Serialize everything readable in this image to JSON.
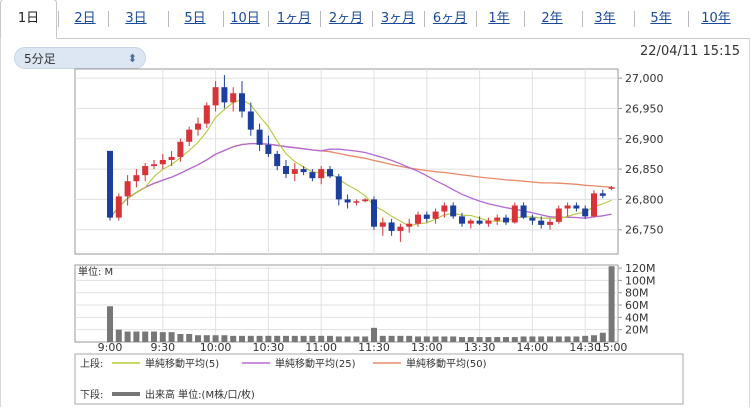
{
  "tabs": [
    "1日",
    "2日",
    "3日",
    "5日",
    "10日",
    "1ヶ月",
    "2ヶ月",
    "3ヶ月",
    "6ヶ月",
    "1年",
    "2年",
    "3年",
    "5年",
    "10年"
  ],
  "active_tab": "1日",
  "interval_select": {
    "value": "5分足"
  },
  "datetime": "22/04/11 15:15",
  "colors": {
    "up": "#d9333a",
    "down": "#1c3f9e",
    "ma5": "#b5c93c",
    "ma25": "#b36ad6",
    "ma50": "#e88a6a",
    "volume": "#777777"
  },
  "chart_data": {
    "type": "candlestick",
    "x_tick_labels": [
      "9:00",
      "9:30",
      "10:00",
      "10:30",
      "11:00",
      "11:30",
      "13:00",
      "13:30",
      "14:00",
      "14:30",
      "15:00"
    ],
    "price_axis": {
      "ticks": [
        "27,000",
        "26,950",
        "26,900",
        "26,850",
        "26,800",
        "26,750"
      ],
      "ylim": [
        26710,
        27015
      ]
    },
    "volume_axis": {
      "unit_label": "単位: M",
      "ticks": [
        "120M",
        "100M",
        "80M",
        "60M",
        "40M",
        "20M"
      ],
      "ylim": [
        0,
        125
      ]
    },
    "candles": [
      [
        26880,
        26880,
        26765,
        26770
      ],
      [
        26770,
        26810,
        26765,
        26805
      ],
      [
        26805,
        26840,
        26790,
        26830
      ],
      [
        26830,
        26850,
        26820,
        26840
      ],
      [
        26840,
        26860,
        26830,
        26855
      ],
      [
        26855,
        26865,
        26850,
        26858
      ],
      [
        26858,
        26875,
        26850,
        26865
      ],
      [
        26865,
        26880,
        26855,
        26870
      ],
      [
        26870,
        26900,
        26862,
        26895
      ],
      [
        26895,
        26920,
        26888,
        26915
      ],
      [
        26915,
        26935,
        26905,
        26925
      ],
      [
        26925,
        26960,
        26918,
        26955
      ],
      [
        26955,
        26995,
        26945,
        26985
      ],
      [
        26985,
        27005,
        26950,
        26960
      ],
      [
        26960,
        26985,
        26945,
        26975
      ],
      [
        26975,
        26995,
        26935,
        26945
      ],
      [
        26945,
        26960,
        26905,
        26915
      ],
      [
        26915,
        26925,
        26880,
        26890
      ],
      [
        26890,
        26905,
        26870,
        26875
      ],
      [
        26875,
        26880,
        26848,
        26855
      ],
      [
        26855,
        26865,
        26835,
        26842
      ],
      [
        26842,
        26860,
        26830,
        26850
      ],
      [
        26850,
        26855,
        26840,
        26845
      ],
      [
        26845,
        26850,
        26830,
        26835
      ],
      [
        26835,
        26855,
        26825,
        26850
      ],
      [
        26850,
        26855,
        26835,
        26838
      ],
      [
        26838,
        26842,
        26790,
        26800
      ],
      [
        26800,
        26808,
        26785,
        26795
      ],
      [
        26795,
        26800,
        26790,
        26797
      ],
      [
        26797,
        26802,
        26795,
        26800
      ],
      [
        26800,
        26805,
        26750,
        26755
      ],
      [
        26755,
        26770,
        26740,
        26762
      ],
      [
        26762,
        26768,
        26740,
        26748
      ],
      [
        26748,
        26760,
        26730,
        26755
      ],
      [
        26755,
        26768,
        26745,
        26760
      ],
      [
        26760,
        26780,
        26755,
        26775
      ],
      [
        26775,
        26780,
        26762,
        26768
      ],
      [
        26768,
        26785,
        26760,
        26780
      ],
      [
        26780,
        26795,
        26770,
        26790
      ],
      [
        26790,
        26795,
        26768,
        26772
      ],
      [
        26772,
        26778,
        26755,
        26760
      ],
      [
        26760,
        26768,
        26752,
        26765
      ],
      [
        26765,
        26772,
        26758,
        26760
      ],
      [
        26760,
        26770,
        26755,
        26765
      ],
      [
        26765,
        26775,
        26758,
        26770
      ],
      [
        26770,
        26775,
        26758,
        26762
      ],
      [
        26762,
        26795,
        26760,
        26790
      ],
      [
        26790,
        26795,
        26768,
        26770
      ],
      [
        26770,
        26775,
        26758,
        26765
      ],
      [
        26765,
        26772,
        26752,
        26758
      ],
      [
        26758,
        26768,
        26750,
        26763
      ],
      [
        26763,
        26790,
        26760,
        26785
      ],
      [
        26785,
        26795,
        26772,
        26790
      ],
      [
        26790,
        26795,
        26780,
        26785
      ],
      [
        26785,
        26790,
        26768,
        26772
      ],
      [
        26772,
        26815,
        26770,
        26810
      ],
      [
        26810,
        26816,
        26802,
        26806
      ],
      [
        26818,
        26822,
        26815,
        26820
      ]
    ],
    "volumes": [
      58,
      20,
      17,
      17,
      17,
      17,
      16,
      16,
      13,
      13,
      11,
      11,
      11,
      11,
      10,
      10,
      10,
      10,
      10,
      10,
      10,
      10,
      10,
      10,
      10,
      10,
      9,
      9,
      9,
      9,
      23,
      10,
      10,
      10,
      10,
      9,
      9,
      9,
      9,
      9,
      8,
      8,
      8,
      8,
      8,
      8,
      8,
      9,
      9,
      9,
      9,
      9,
      9,
      9,
      10,
      11,
      15,
      123
    ],
    "legend": {
      "upper_label": "上段:",
      "lower_label": "下段:",
      "series": [
        "単純移動平均(5)",
        "単純移動平均(25)",
        "単純移動平均(50)"
      ],
      "volume_series": "出来高 単位:(M株/口/枚)"
    }
  }
}
